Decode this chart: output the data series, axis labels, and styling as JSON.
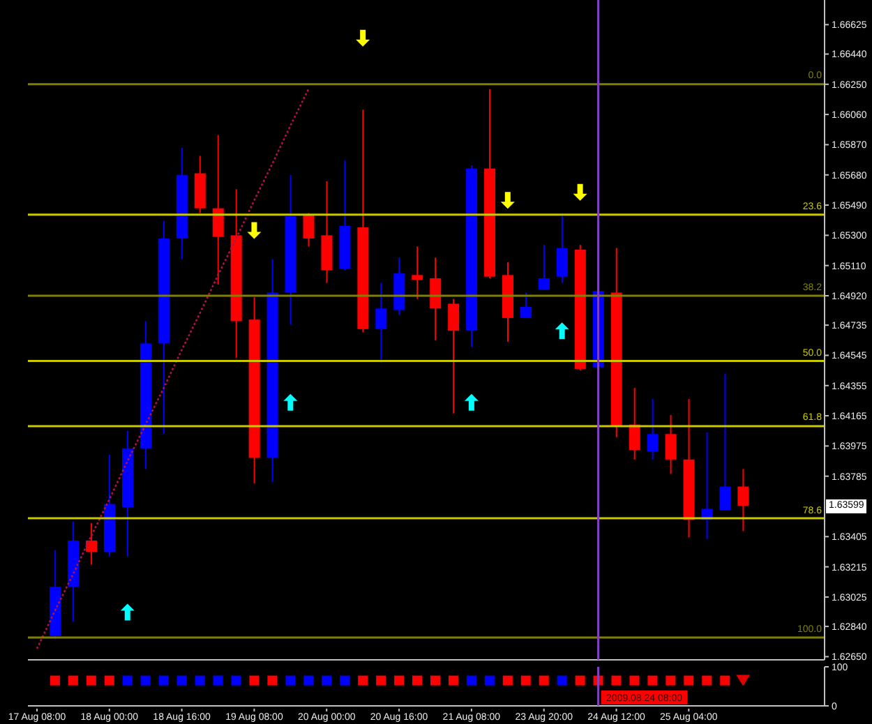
{
  "chart_data": [
    {
      "type": "candlestick",
      "categories": [
        null,
        null,
        null,
        null,
        null,
        null,
        null,
        null,
        null,
        null,
        null,
        null,
        null,
        null,
        null,
        null,
        null,
        null,
        null,
        null,
        null,
        null,
        null,
        null,
        null,
        null,
        null,
        null,
        null,
        null,
        null,
        null,
        null,
        null,
        null,
        null,
        null,
        null,
        null,
        null,
        null,
        null,
        null,
        null
      ],
      "ohlc": [
        null,
        [
          1.6278,
          1.6332,
          1.6276,
          1.6309
        ],
        [
          1.6309,
          1.635,
          1.6287,
          1.6338
        ],
        [
          1.6338,
          1.6349,
          1.6323,
          1.6331
        ],
        [
          1.6331,
          1.6392,
          1.6328,
          1.6361
        ],
        [
          1.6359,
          1.6407,
          1.6328,
          1.6396
        ],
        [
          1.6396,
          1.6476,
          1.6383,
          1.6462
        ],
        [
          1.6462,
          1.6539,
          1.6405,
          1.6528
        ],
        [
          1.6528,
          1.6585,
          1.6515,
          1.6568
        ],
        [
          1.6569,
          1.658,
          1.6544,
          1.6547
        ],
        [
          1.6547,
          1.6593,
          1.6499,
          1.6529
        ],
        [
          1.653,
          1.6559,
          1.6453,
          1.6476
        ],
        [
          1.6477,
          1.6491,
          1.6374,
          1.639
        ],
        [
          1.639,
          1.6515,
          1.6375,
          1.6494
        ],
        [
          1.6494,
          1.6568,
          1.6474,
          1.6542
        ],
        [
          1.6543,
          1.6544,
          1.6523,
          1.6528
        ],
        [
          1.653,
          1.6564,
          1.65,
          1.6508
        ],
        [
          1.6509,
          1.6577,
          1.6508,
          1.6536
        ],
        [
          1.6535,
          1.6609,
          1.6469,
          1.6471
        ],
        [
          1.6471,
          1.65,
          1.645,
          1.6484
        ],
        [
          1.6483,
          1.6516,
          1.648,
          1.6506
        ],
        [
          1.6505,
          1.6523,
          1.649,
          1.6502
        ],
        [
          1.6503,
          1.6516,
          1.6464,
          1.6484
        ],
        [
          1.6487,
          1.649,
          1.6418,
          1.647
        ],
        [
          1.647,
          1.6574,
          1.646,
          1.6572
        ],
        [
          1.6572,
          1.6622,
          1.6503,
          1.6504
        ],
        [
          1.6505,
          1.6513,
          1.6463,
          1.6478
        ],
        [
          1.6478,
          1.6494,
          1.6478,
          1.6485
        ],
        [
          1.6496,
          1.6524,
          1.6496,
          1.6503
        ],
        [
          1.6504,
          1.6544,
          1.65,
          1.6522
        ],
        [
          1.6521,
          1.6524,
          1.6445,
          1.6446
        ],
        [
          1.6447,
          1.6496,
          1.6446,
          1.6495
        ],
        [
          1.6494,
          1.6522,
          1.6403,
          1.641
        ],
        [
          1.6411,
          1.6434,
          1.6389,
          1.6395
        ],
        [
          1.6394,
          1.6427,
          1.6389,
          1.6405
        ],
        [
          1.6405,
          1.6417,
          1.638,
          1.6389
        ],
        [
          1.6389,
          1.6427,
          1.634,
          1.6351
        ],
        [
          1.6351,
          1.6406,
          1.6339,
          1.6358
        ],
        [
          1.6357,
          1.6443,
          1.6357,
          1.6372
        ],
        [
          1.6372,
          1.6383,
          1.6344,
          1.63599
        ],
        null,
        null,
        null,
        null
      ],
      "colors": [
        null,
        "#0000ff",
        "#0000ff",
        "#ff0000",
        "#0000ff",
        "#0000ff",
        "#0000ff",
        "#0000ff",
        "#0000ff",
        "#ff0000",
        "#ff0000",
        "#ff0000",
        "#ff0000",
        "#0000ff",
        "#0000ff",
        "#ff0000",
        "#ff0000",
        "#0000ff",
        "#ff0000",
        "#0000ff",
        "#0000ff",
        "#ff0000",
        "#ff0000",
        "#ff0000",
        "#0000ff",
        "#ff0000",
        "#ff0000",
        "#0000ff",
        "#0000ff",
        "#0000ff",
        "#ff0000",
        "#0000ff",
        "#ff0000",
        "#ff0000",
        "#0000ff",
        "#ff0000",
        "#ff0000",
        "#0000ff",
        "#0000ff",
        "#ff0000",
        null,
        null,
        null,
        null
      ],
      "series": [
        {
          "type": "line",
          "color": "#b01050",
          "line_style": "dotted",
          "values": [
            1.627,
            1.6294,
            1.6317,
            1.6341,
            1.6364,
            1.6388,
            1.6411,
            1.6434,
            1.6458,
            1.6481,
            1.6505,
            1.6528,
            1.6552,
            1.6575,
            1.6599,
            1.6622,
            null,
            null,
            null,
            null,
            null,
            null,
            null,
            null,
            null,
            null,
            null,
            null,
            null,
            null,
            null,
            null,
            null,
            null,
            null,
            null,
            null,
            null,
            null,
            null,
            null,
            null,
            null,
            null
          ]
        },
        {
          "type": "scatter",
          "color": "#ffff00",
          "values": [
            null,
            null,
            null,
            null,
            null,
            null,
            null,
            null,
            null,
            null,
            null,
            null,
            1.6533,
            null,
            null,
            null,
            null,
            null,
            1.6654,
            null,
            null,
            null,
            null,
            null,
            null,
            null,
            1.6552,
            null,
            null,
            null,
            1.6557,
            null,
            null,
            null,
            null,
            null,
            null,
            null,
            null,
            null,
            null,
            null,
            null,
            null
          ]
        },
        {
          "type": "scatter",
          "color": "#00ffff",
          "values": [
            null,
            null,
            null,
            null,
            null,
            1.6293,
            null,
            null,
            null,
            null,
            null,
            null,
            null,
            null,
            1.6425,
            null,
            null,
            null,
            null,
            null,
            null,
            null,
            null,
            null,
            1.6425,
            null,
            null,
            null,
            null,
            1.647,
            null,
            null,
            null,
            null,
            null,
            null,
            null,
            null,
            null,
            null,
            null,
            null,
            null,
            null
          ]
        }
      ],
      "ylim": [
        1.6263,
        1.6678
      ],
      "yticks": [
        1.66625,
        {
          "value": 1.6644,
          "label": "1.66440"
        },
        {
          "value": 1.6625,
          "label": "1.66250"
        },
        {
          "value": 1.6606,
          "label": "1.66060"
        },
        {
          "value": 1.6587,
          "label": "1.65870"
        },
        {
          "value": 1.6568,
          "label": "1.65680"
        },
        {
          "value": 1.6549,
          "label": "1.65490"
        },
        {
          "value": 1.653,
          "label": "1.65300"
        },
        {
          "value": 1.6511,
          "label": "1.65110"
        },
        {
          "value": 1.6492,
          "label": "1.64920"
        },
        1.64735,
        1.64545,
        1.64355,
        1.64165,
        1.63975,
        1.63785,
        1.63405,
        1.63215,
        1.63025,
        {
          "value": 1.6284,
          "label": "1.62840"
        },
        {
          "value": 1.6265,
          "label": "1.62650"
        }
      ],
      "ref_lines": [
        {
          "axis": "y",
          "value": 1.6625,
          "color": "#808000"
        },
        {
          "axis": "y",
          "value": 1.6543,
          "color": "#c8c800"
        },
        {
          "axis": "y",
          "value": 1.6492,
          "color": "#808000"
        },
        {
          "axis": "y",
          "value": 1.6451,
          "color": "#c8c800"
        },
        {
          "axis": "y",
          "value": 1.641,
          "color": "#c8c800"
        },
        {
          "axis": "y",
          "value": 1.6352,
          "color": "#c8c800"
        },
        {
          "axis": "y",
          "value": 1.6277,
          "color": "#808000"
        }
      ],
      "annotations": [
        "1.63599",
        {
          "text": "0.0",
          "y": 1.6625
        },
        {
          "text": "23.6",
          "y": 1.6543
        },
        {
          "text": "38.2",
          "y": 1.6492
        },
        {
          "text": "50.0",
          "y": 1.6451
        },
        {
          "text": "61.8",
          "y": 1.641
        },
        {
          "text": "78.6",
          "y": 1.6352
        },
        {
          "text": "100.0",
          "y": 1.6277
        }
      ],
      "tick_labels": "y"
    },
    {
      "type": "scatter",
      "categories": [
        "17 Aug 08:00",
        null,
        null,
        null,
        "18 Aug 00:00",
        null,
        null,
        null,
        "18 Aug 16:00",
        null,
        null,
        null,
        "19 Aug 08:00",
        null,
        null,
        null,
        "20 Aug 00:00",
        null,
        null,
        null,
        "20 Aug 16:00",
        null,
        null,
        null,
        "21 Aug 08:00",
        null,
        null,
        null,
        "23 Aug 20:00",
        null,
        null,
        null,
        "24 Aug 12:00",
        null,
        null,
        null,
        "25 Aug 04:00",
        null,
        null,
        null,
        null,
        null,
        null,
        null
      ],
      "series": [
        {
          "marker": "square",
          "colors": [
            null,
            "#ff0000",
            "#ff0000",
            "#ff0000",
            "#ff0000",
            "#0000ff",
            "#0000ff",
            "#0000ff",
            "#0000ff",
            "#0000ff",
            "#0000ff",
            "#0000ff",
            "#ff0000",
            "#ff0000",
            "#0000ff",
            "#0000ff",
            "#0000ff",
            "#0000ff",
            "#ff0000",
            "#ff0000",
            "#ff0000",
            "#ff0000",
            "#ff0000",
            "#ff0000",
            "#0000ff",
            "#0000ff",
            "#ff0000",
            "#ff0000",
            "#ff0000",
            "#0000ff",
            "#ff0000",
            "#ff0000",
            "#ff0000",
            "#ff0000",
            "#ff0000",
            "#ff0000",
            "#ff0000",
            "#ff0000",
            "#ff0000",
            null,
            null,
            null,
            null,
            null
          ],
          "values": [
            null,
            65,
            65,
            65,
            65,
            65,
            65,
            65,
            65,
            65,
            65,
            65,
            65,
            65,
            65,
            65,
            65,
            65,
            65,
            65,
            65,
            65,
            65,
            65,
            65,
            65,
            65,
            65,
            65,
            65,
            65,
            65,
            65,
            65,
            65,
            65,
            65,
            65,
            65,
            null,
            null,
            null,
            null,
            null
          ]
        },
        {
          "marker": "triangle",
          "color": "#e00000",
          "values": [
            null,
            null,
            null,
            null,
            null,
            null,
            null,
            null,
            null,
            null,
            null,
            null,
            null,
            null,
            null,
            null,
            null,
            null,
            null,
            null,
            null,
            null,
            null,
            null,
            null,
            null,
            null,
            null,
            null,
            null,
            null,
            null,
            null,
            null,
            null,
            null,
            null,
            null,
            null,
            65,
            null,
            null,
            null,
            null
          ]
        }
      ],
      "ylim": [
        0,
        100
      ],
      "yticks": [
        0,
        100
      ],
      "annotations": [
        "2009.08.24 08:00"
      ]
    }
  ]
}
